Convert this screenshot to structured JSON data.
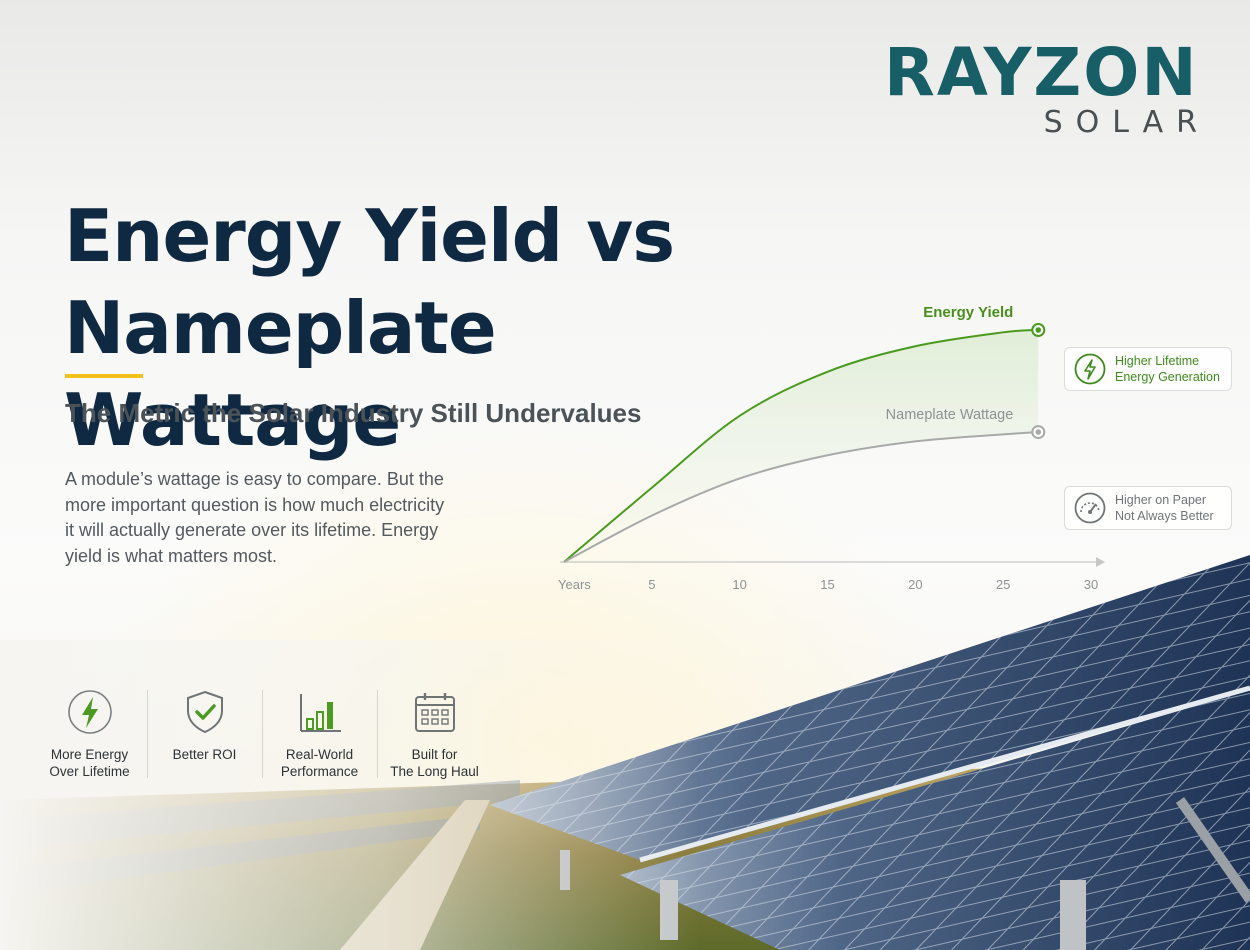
{
  "brand": {
    "name": "RAYZON",
    "sub": "SOLAR",
    "color": "#185e66"
  },
  "headline": {
    "line1": "Energy Yield vs",
    "line2": "Nameplate Wattage"
  },
  "subtitle": "The Metric the Solar Industry Still Undervalues",
  "body": "A module’s wattage is easy to compare. But the more important question is how much electricity it will actually generate over its lifetime. Energy yield is what matters most.",
  "chart_data": {
    "type": "line",
    "x_ticks": [
      "Years",
      "5",
      "10",
      "15",
      "20",
      "25",
      "30"
    ],
    "series": [
      {
        "name": "Energy Yield",
        "color": "#4a9a1e",
        "x": [
          0,
          5,
          10,
          15,
          20,
          25,
          27
        ],
        "y": [
          0,
          32,
          63,
          82,
          93,
          99,
          100
        ]
      },
      {
        "name": "Nameplate Wattage",
        "color": "#a7aaa8",
        "x": [
          0,
          5,
          10,
          15,
          20,
          25,
          27
        ],
        "y": [
          0,
          20,
          36,
          46,
          52,
          55,
          56
        ]
      }
    ],
    "xlim": [
      0,
      30
    ],
    "ylim": [
      0,
      100
    ],
    "grid": false
  },
  "callouts": [
    {
      "icon": "lightning-icon",
      "line1": "Higher Lifetime",
      "line2": "Energy Generation",
      "color": "#3f8a1e"
    },
    {
      "icon": "speedometer-icon",
      "line1": "Higher on Paper",
      "line2": "Not Always Better",
      "color": "#6f7477"
    }
  ],
  "features": [
    {
      "icon": "lightning-icon",
      "line1": "More Energy",
      "line2": "Over Lifetime"
    },
    {
      "icon": "shield-check-icon",
      "line1": "Better ROI",
      "line2": ""
    },
    {
      "icon": "bar-chart-icon",
      "line1": "Real-World",
      "line2": "Performance"
    },
    {
      "icon": "calendar-icon",
      "line1": "Built for",
      "line2": "The Long Haul"
    }
  ]
}
